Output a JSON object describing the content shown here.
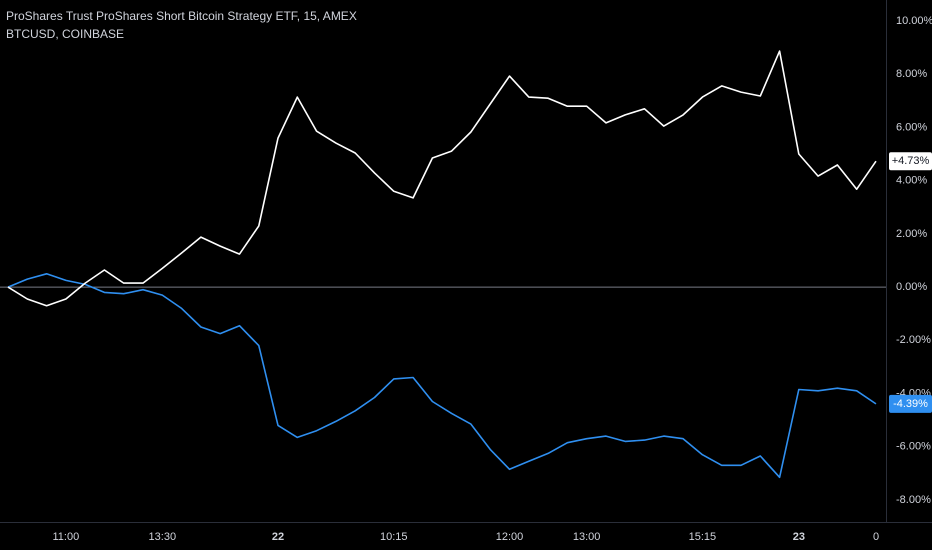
{
  "chart_data": {
    "type": "line",
    "series": [
      {
        "name": "ProShares Trust ProShares Short Bitcoin Strategy ETF, 15, AMEX",
        "color": "#2f8ff0",
        "values": [
          0,
          0.3,
          0.5,
          0.25,
          0.1,
          -0.2,
          -0.25,
          -0.1,
          -0.3,
          -0.8,
          -1.5,
          -1.75,
          -1.45,
          -2.2,
          -5.2,
          -5.65,
          -5.4,
          -5.05,
          -4.65,
          -4.15,
          -3.45,
          -3.4,
          -4.3,
          -4.75,
          -5.15,
          -6.1,
          -6.85,
          -6.55,
          -6.25,
          -5.85,
          -5.7,
          -5.6,
          -5.8,
          -5.75,
          -5.6,
          -5.7,
          -6.3,
          -6.7,
          -6.7,
          -6.35,
          -7.15,
          -3.85,
          -3.9,
          -3.8,
          -3.9,
          -4.39
        ],
        "last_value_label": "-4.39%"
      },
      {
        "name": "BTCUSD, COINBASE",
        "color": "#ffffff",
        "values": [
          0,
          -0.45,
          -0.7,
          -0.45,
          0.15,
          0.64,
          0.15,
          0.15,
          0.7,
          1.28,
          1.88,
          1.54,
          1.24,
          2.3,
          5.6,
          7.14,
          5.86,
          5.41,
          5.04,
          4.29,
          3.6,
          3.35,
          4.85,
          5.11,
          5.83,
          6.88,
          7.93,
          7.14,
          7.1,
          6.8,
          6.8,
          6.17,
          6.47,
          6.7,
          6.05,
          6.47,
          7.14,
          7.56,
          7.33,
          7.18,
          8.87,
          5.0,
          4.17,
          4.59,
          3.68,
          4.73
        ],
        "last_value_label": "+4.73%"
      }
    ],
    "categories": [
      null,
      null,
      null,
      "11:00",
      null,
      null,
      null,
      null,
      "13:30",
      null,
      null,
      null,
      null,
      null,
      "22",
      null,
      null,
      null,
      null,
      null,
      "10:15",
      null,
      null,
      null,
      null,
      null,
      "12:00",
      null,
      null,
      null,
      "13:00",
      null,
      null,
      null,
      null,
      null,
      "15:15",
      null,
      null,
      null,
      null,
      "23",
      null,
      null,
      null,
      "0"
    ],
    "ylim": [
      -8.83,
      10.79
    ],
    "yticks": [
      {
        "value": 10,
        "label": "10.00%"
      },
      {
        "value": 8,
        "label": "8.00%"
      },
      {
        "value": 6,
        "label": "6.00%"
      },
      {
        "value": 4,
        "label": "4.00%"
      },
      {
        "value": 2,
        "label": "2.00%"
      },
      {
        "value": 0,
        "label": "0.00%"
      },
      {
        "value": -2,
        "label": "-2.00%"
      },
      {
        "value": -4,
        "label": "-4.00%"
      },
      {
        "value": -6,
        "label": "-6.00%"
      },
      {
        "value": -8,
        "label": "-8.00%"
      }
    ],
    "zero_line": true
  }
}
